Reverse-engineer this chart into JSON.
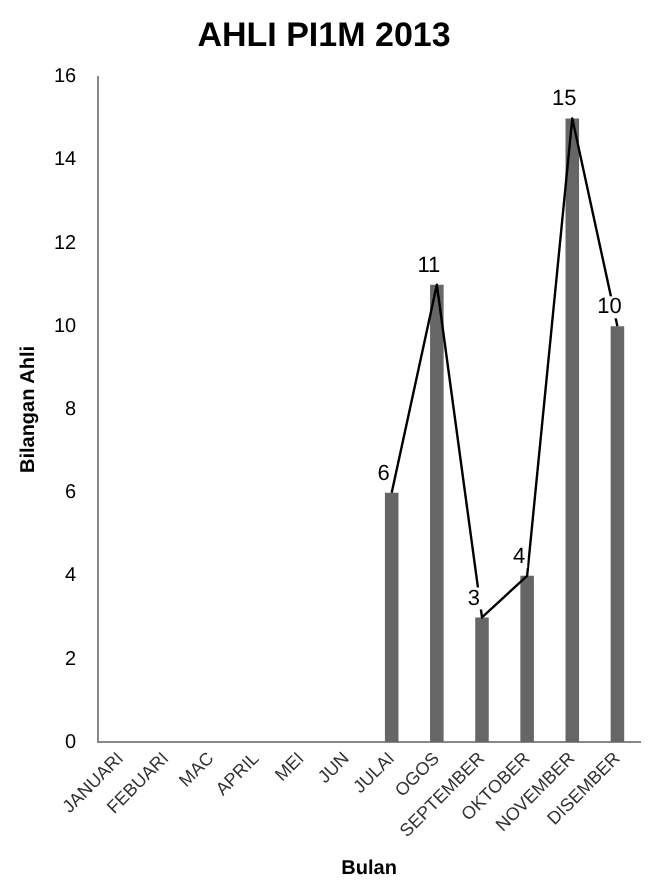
{
  "chart_data": {
    "type": "bar",
    "title": "AHLI PI1M 2013",
    "xlabel": "Bulan",
    "ylabel": "Bilangan Ahli",
    "categories": [
      "JANUARI",
      "FEBUARI",
      "MAC",
      "APRIL",
      "MEI",
      "JUN",
      "JULAI",
      "OGOS",
      "SEPTEMBER",
      "OKTOBER",
      "NOVEMBER",
      "DISEMBER"
    ],
    "series": [
      {
        "color": "#666666",
        "values": [
          null,
          null,
          null,
          null,
          null,
          null,
          6,
          11,
          3,
          4,
          15,
          10
        ],
        "value_labels": [
          null,
          null,
          null,
          null,
          null,
          null,
          "6",
          "11",
          "3",
          "4",
          "15",
          "10"
        ]
      },
      {
        "type": "line",
        "color": "#000000",
        "values": [
          null,
          null,
          null,
          null,
          null,
          null,
          6,
          11,
          3,
          4,
          15,
          10
        ]
      }
    ],
    "ylim": [
      0,
      16
    ],
    "yticks": [
      0,
      2,
      4,
      6,
      8,
      10,
      12,
      14,
      16
    ],
    "grid": false,
    "legend": false,
    "marker": "none"
  }
}
